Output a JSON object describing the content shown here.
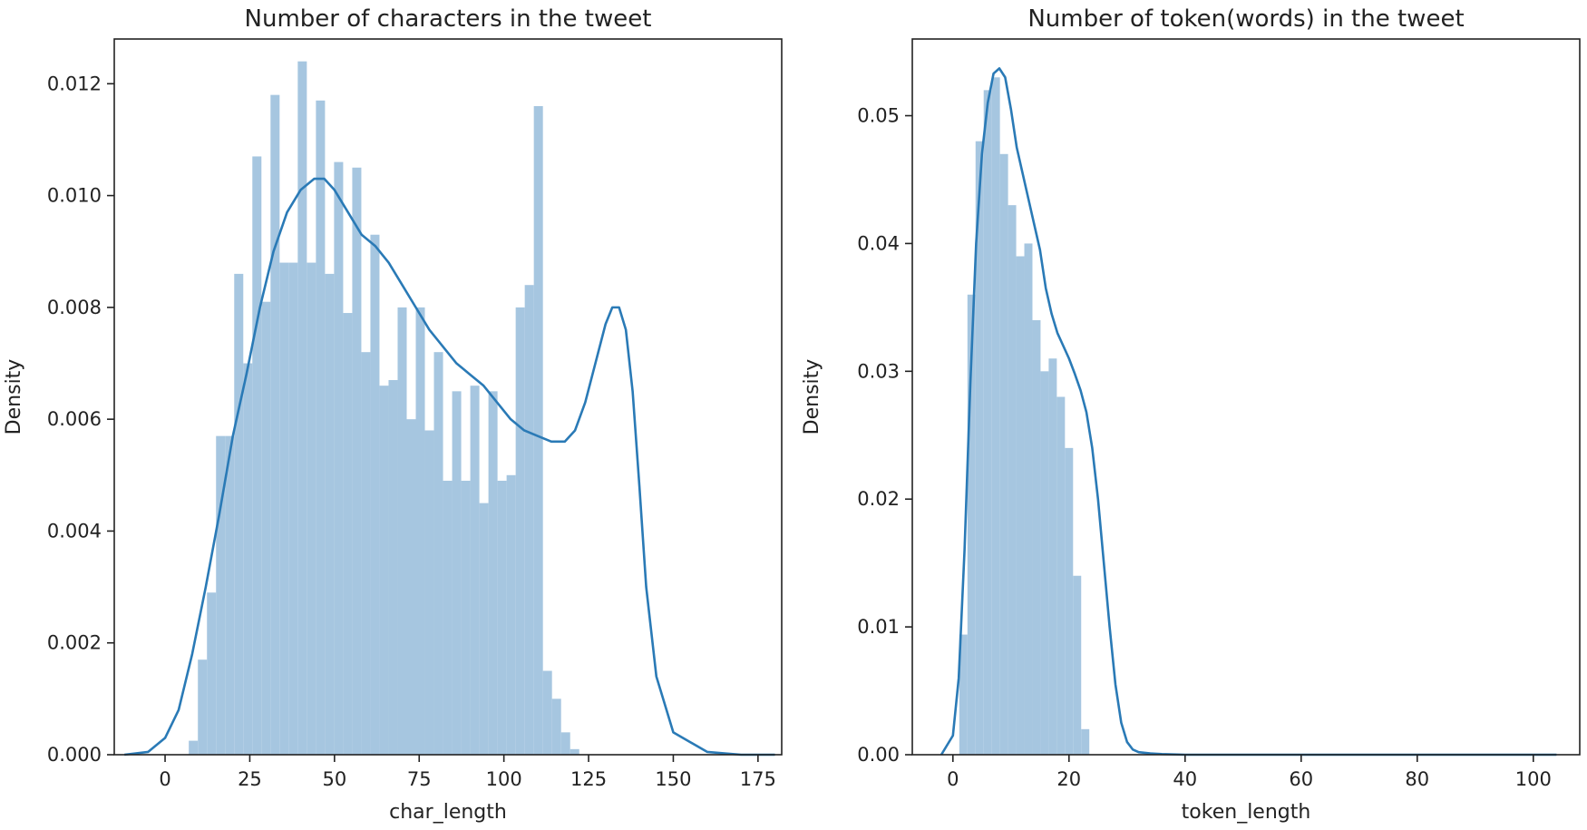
{
  "chart_data": [
    {
      "type": "histogram",
      "title": "Number of characters in the tweet",
      "xlabel": "char_length",
      "ylabel": "Density",
      "xlim": [
        -15,
        182
      ],
      "ylim": [
        0,
        0.0128
      ],
      "xticks": [
        0,
        25,
        50,
        75,
        100,
        125,
        150,
        175
      ],
      "xtick_labels": [
        "0",
        "25",
        "50",
        "75",
        "100",
        "125",
        "150",
        "175"
      ],
      "yticks": [
        0.0,
        0.002,
        0.004,
        0.006,
        0.008,
        0.01,
        0.012
      ],
      "ytick_labels": [
        "0.000",
        "0.002",
        "0.004",
        "0.006",
        "0.008",
        "0.010",
        "0.012"
      ],
      "bin_start": 7,
      "bin_width": 2.68,
      "bar_values": [
        0.00025,
        0.0017,
        0.0029,
        0.0057,
        0.0057,
        0.0086,
        0.007,
        0.0107,
        0.0081,
        0.0118,
        0.0088,
        0.0088,
        0.0124,
        0.0088,
        0.0117,
        0.0086,
        0.0106,
        0.0079,
        0.0105,
        0.0072,
        0.0093,
        0.0066,
        0.0067,
        0.008,
        0.006,
        0.008,
        0.0058,
        0.0072,
        0.0049,
        0.0065,
        0.0049,
        0.0066,
        0.0045,
        0.0065,
        0.0049,
        0.005,
        0.008,
        0.0084,
        0.0116,
        0.0015,
        0.001,
        0.0004,
        0.0001
      ],
      "kde_x": [
        -12,
        -5,
        0,
        4,
        8,
        12,
        16,
        20,
        24,
        28,
        32,
        36,
        40,
        44,
        47,
        50,
        54,
        58,
        62,
        66,
        70,
        74,
        78,
        82,
        86,
        90,
        94,
        98,
        102,
        106,
        110,
        114,
        118,
        121,
        124,
        127,
        130,
        132,
        134,
        136,
        138,
        140,
        142,
        145,
        150,
        160,
        170,
        180
      ],
      "kde_y": [
        0.0,
        5e-05,
        0.0003,
        0.0008,
        0.0018,
        0.003,
        0.0043,
        0.0057,
        0.0068,
        0.008,
        0.009,
        0.0097,
        0.0101,
        0.0103,
        0.0103,
        0.0101,
        0.0097,
        0.0093,
        0.0091,
        0.0088,
        0.0084,
        0.008,
        0.0076,
        0.0073,
        0.007,
        0.0068,
        0.0066,
        0.0063,
        0.006,
        0.0058,
        0.0057,
        0.0056,
        0.0056,
        0.0058,
        0.0063,
        0.007,
        0.0077,
        0.008,
        0.008,
        0.0076,
        0.0065,
        0.0048,
        0.003,
        0.0014,
        0.0004,
        5e-05,
        0.0,
        0.0
      ]
    },
    {
      "type": "histogram",
      "title": "Number of token(words) in the tweet",
      "xlabel": "token_length",
      "ylabel": "Density",
      "xlim": [
        -7,
        108
      ],
      "ylim": [
        0,
        0.056
      ],
      "xticks": [
        0,
        20,
        40,
        60,
        80,
        100
      ],
      "xtick_labels": [
        "0",
        "20",
        "40",
        "60",
        "80",
        "100"
      ],
      "yticks": [
        0.0,
        0.01,
        0.02,
        0.03,
        0.04,
        0.05
      ],
      "ytick_labels": [
        "0.00",
        "0.01",
        "0.02",
        "0.03",
        "0.04",
        "0.05"
      ],
      "bin_start": 1.1,
      "bin_width": 1.4,
      "bar_values": [
        0.0094,
        0.036,
        0.048,
        0.052,
        0.053,
        0.047,
        0.043,
        0.039,
        0.04,
        0.034,
        0.03,
        0.031,
        0.028,
        0.024,
        0.014,
        0.002
      ],
      "kde_x": [
        -2,
        0,
        1,
        2,
        3,
        4,
        5,
        6,
        7,
        8,
        9,
        10,
        11,
        12,
        13,
        14,
        15,
        16,
        17,
        18,
        19,
        20,
        21,
        22,
        23,
        24,
        25,
        26,
        27,
        28,
        29,
        30,
        31,
        32,
        34,
        36,
        40,
        60,
        80,
        104
      ],
      "kde_y": [
        0.0,
        0.0015,
        0.006,
        0.016,
        0.029,
        0.04,
        0.047,
        0.051,
        0.0533,
        0.0537,
        0.053,
        0.0505,
        0.0475,
        0.0455,
        0.0435,
        0.0415,
        0.0395,
        0.0365,
        0.0345,
        0.033,
        0.032,
        0.031,
        0.0298,
        0.0285,
        0.0268,
        0.024,
        0.02,
        0.015,
        0.01,
        0.0055,
        0.0025,
        0.001,
        0.0004,
        0.0002,
        0.0001,
        5e-05,
        0.0,
        0.0,
        0.0,
        0.0
      ]
    }
  ]
}
